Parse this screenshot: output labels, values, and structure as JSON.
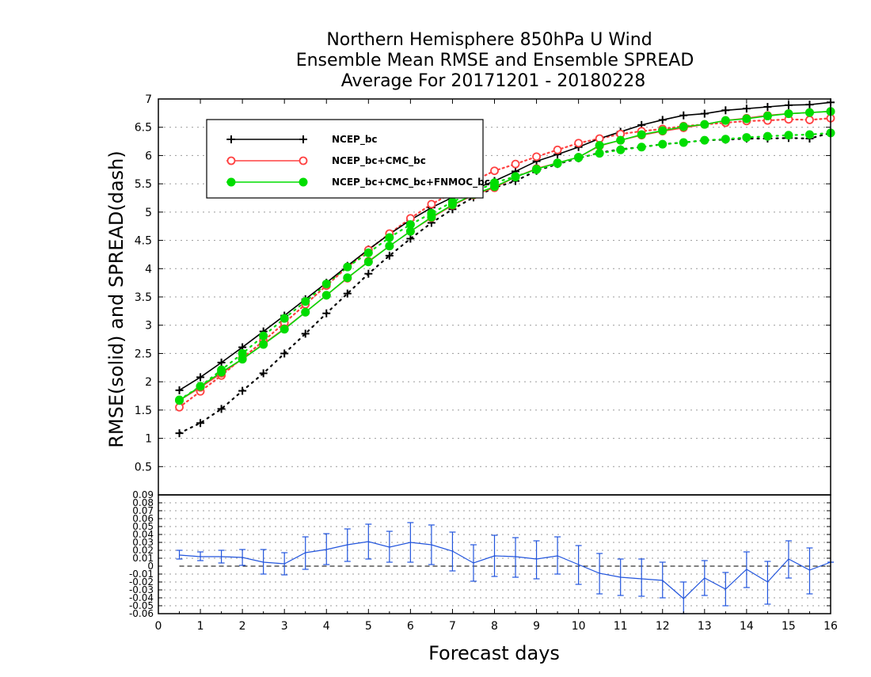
{
  "chart_data": {
    "type": "line",
    "title": [
      "Northern Hemisphere 850hPa U Wind",
      "Ensemble Mean RMSE and Ensemble SPREAD",
      "Average For 20171201 - 20180228"
    ],
    "xlabel": "Forecast days",
    "ylabel": "RMSE(solid)  and  SPREAD(dash)",
    "xlim": [
      0,
      16
    ],
    "ylim": [
      0,
      7
    ],
    "x_ticks": [
      "0",
      "1",
      "2",
      "3",
      "4",
      "5",
      "6",
      "7",
      "8",
      "9",
      "10",
      "11",
      "12",
      "13",
      "14",
      "15",
      "16"
    ],
    "y_ticks": [
      "0.5",
      "1",
      "1.5",
      "2",
      "2.5",
      "3",
      "3.5",
      "4",
      "4.5",
      "5",
      "5.5",
      "6",
      "6.5",
      "7"
    ],
    "grid": "dotted horizontal",
    "legend_position": "top-left",
    "x": [
      0.5,
      1,
      1.5,
      2,
      2.5,
      3,
      3.5,
      4,
      4.5,
      5,
      5.5,
      6,
      6.5,
      7,
      7.5,
      8,
      8.5,
      9,
      9.5,
      10,
      10.5,
      11,
      11.5,
      12,
      12.5,
      13,
      13.5,
      14,
      14.5,
      15,
      15.5,
      16
    ],
    "series": [
      {
        "name": "NCEP_bc",
        "color": "#000000",
        "marker": "plus",
        "rmse": [
          1.85,
          2.08,
          2.34,
          2.61,
          2.89,
          3.17,
          3.46,
          3.75,
          4.05,
          4.34,
          4.61,
          4.86,
          5.08,
          5.26,
          5.4,
          5.55,
          5.72,
          5.9,
          6.02,
          6.15,
          6.3,
          6.42,
          6.54,
          6.63,
          6.71,
          6.74,
          6.8,
          6.83,
          6.86,
          6.89,
          6.9,
          6.94
        ],
        "spread": [
          1.09,
          1.27,
          1.52,
          1.84,
          2.15,
          2.5,
          2.85,
          3.21,
          3.56,
          3.91,
          4.23,
          4.53,
          4.81,
          5.05,
          5.26,
          5.43,
          5.55,
          5.73,
          5.85,
          5.95,
          6.05,
          6.11,
          6.15,
          6.2,
          6.23,
          6.27,
          6.28,
          6.3,
          6.3,
          6.31,
          6.3,
          6.4
        ]
      },
      {
        "name": "NCEP_bc+CMC_bc",
        "color": "#ff4040",
        "marker": "open-circle",
        "rmse": [
          1.67,
          1.9,
          2.15,
          2.4,
          2.67,
          2.94,
          3.23,
          3.53,
          3.83,
          4.13,
          4.4,
          4.66,
          4.9,
          5.12,
          5.3,
          5.43,
          5.62,
          5.77,
          5.87,
          5.97,
          6.17,
          6.27,
          6.36,
          6.43,
          6.49,
          6.55,
          6.62,
          6.66,
          6.71,
          6.74,
          6.76,
          6.78
        ],
        "spread": [
          1.55,
          1.83,
          2.11,
          2.42,
          2.72,
          3.04,
          3.37,
          3.7,
          4.03,
          4.33,
          4.62,
          4.89,
          5.14,
          5.34,
          5.55,
          5.73,
          5.85,
          5.98,
          6.1,
          6.22,
          6.3,
          6.38,
          6.43,
          6.47,
          6.52,
          6.55,
          6.58,
          6.61,
          6.62,
          6.64,
          6.63,
          6.66
        ]
      },
      {
        "name": "NCEP_bc+CMC_bc+FNMOC_bc",
        "color": "#00dd00",
        "marker": "filled-circle",
        "rmse": [
          1.67,
          1.92,
          2.17,
          2.4,
          2.66,
          2.93,
          3.23,
          3.53,
          3.84,
          4.12,
          4.4,
          4.66,
          4.91,
          5.13,
          5.31,
          5.45,
          5.62,
          5.76,
          5.87,
          5.97,
          6.18,
          6.27,
          6.37,
          6.44,
          6.51,
          6.55,
          6.62,
          6.65,
          6.7,
          6.74,
          6.76,
          6.78
        ],
        "spread": [
          1.68,
          1.92,
          2.21,
          2.5,
          2.81,
          3.12,
          3.42,
          3.73,
          4.03,
          4.28,
          4.55,
          4.78,
          4.98,
          5.18,
          5.35,
          5.52,
          5.63,
          5.75,
          5.86,
          5.96,
          6.04,
          6.1,
          6.15,
          6.2,
          6.23,
          6.27,
          6.29,
          6.32,
          6.34,
          6.36,
          6.37,
          6.4
        ]
      }
    ],
    "difference_panel": {
      "ylim": [
        -0.06,
        0.09
      ],
      "y_ticks": [
        "0.09",
        "0.08",
        "0.07",
        "0.06",
        "0.05",
        "0.04",
        "0.03",
        "0.02",
        "0.01",
        "0",
        "-0.01",
        "-0.02",
        "-0.03",
        "-0.04",
        "-0.05",
        "-0.06"
      ],
      "color": "#2255dd",
      "x": [
        0.5,
        1,
        1.5,
        2,
        2.5,
        3,
        3.5,
        4,
        4.5,
        5,
        5.5,
        6,
        6.5,
        7,
        7.5,
        8,
        8.5,
        9,
        9.5,
        10,
        10.5,
        11,
        11.5,
        12,
        12.5,
        13,
        13.5,
        14,
        14.5,
        15,
        15.5,
        16
      ],
      "values": [
        0.014,
        0.012,
        0.012,
        0.011,
        0.005,
        0.003,
        0.017,
        0.021,
        0.027,
        0.031,
        0.024,
        0.03,
        0.027,
        0.019,
        0.004,
        0.013,
        0.012,
        0.009,
        0.013,
        0.002,
        -0.009,
        -0.014,
        -0.016,
        -0.018,
        -0.041,
        -0.015,
        -0.029,
        -0.004,
        -0.02,
        0.009,
        -0.005,
        0.005
      ],
      "error_low": [
        0.009,
        0.007,
        0.004,
        0.001,
        -0.01,
        -0.011,
        -0.004,
        0.002,
        0.006,
        0.009,
        0.005,
        0.005,
        0.002,
        -0.006,
        -0.019,
        -0.013,
        -0.014,
        -0.016,
        -0.01,
        -0.023,
        -0.035,
        -0.037,
        -0.038,
        -0.04,
        -0.062,
        -0.037,
        -0.05,
        -0.027,
        -0.048,
        -0.015,
        -0.035,
        0.005
      ],
      "error_high": [
        0.02,
        0.018,
        0.02,
        0.021,
        0.021,
        0.017,
        0.037,
        0.041,
        0.047,
        0.053,
        0.044,
        0.055,
        0.052,
        0.043,
        0.027,
        0.039,
        0.036,
        0.032,
        0.037,
        0.026,
        0.016,
        0.009,
        0.009,
        0.005,
        -0.02,
        0.007,
        -0.008,
        0.018,
        0.006,
        0.032,
        0.023,
        0.005
      ]
    }
  }
}
